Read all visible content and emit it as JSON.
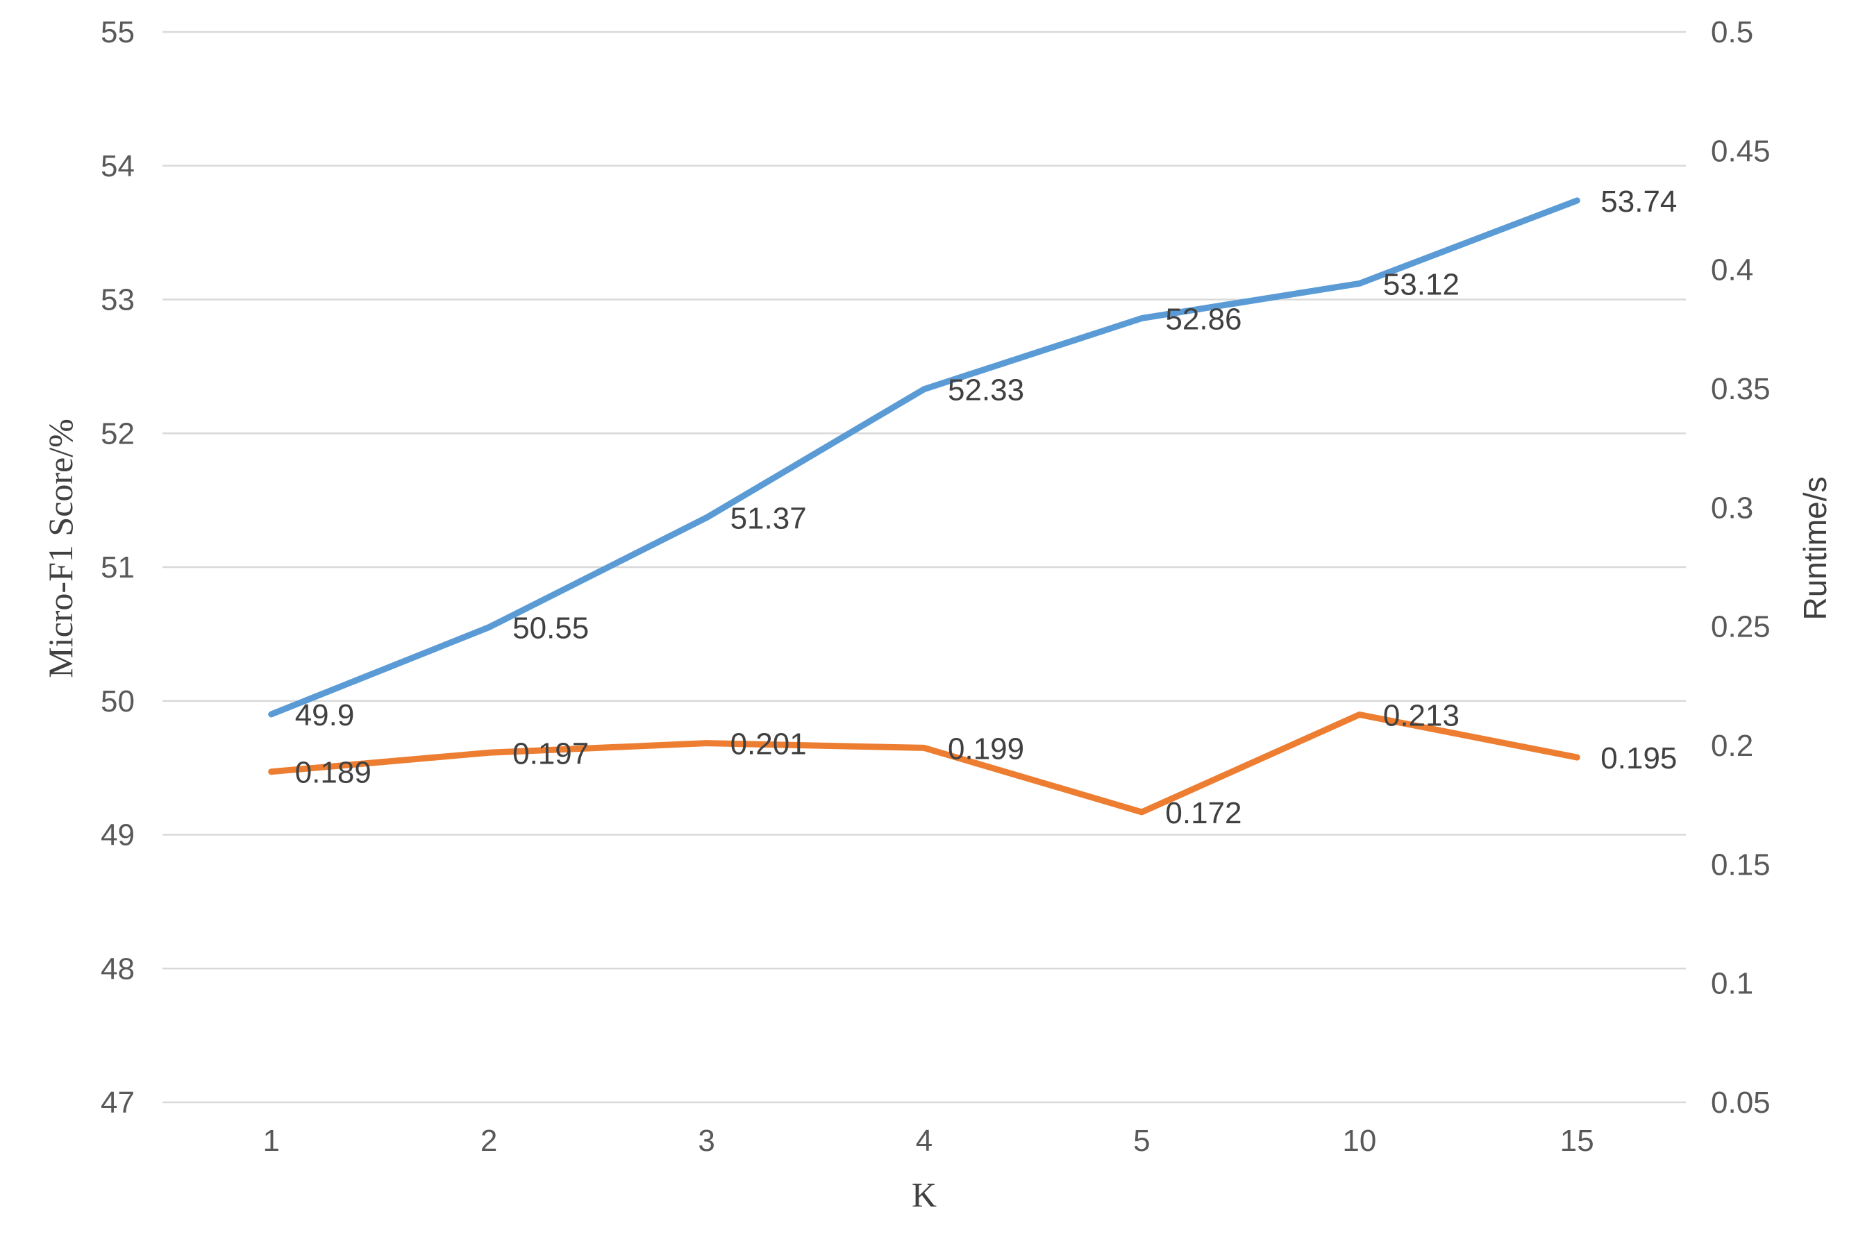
{
  "chart_data": {
    "type": "line",
    "title": "",
    "xlabel": "K",
    "ylabel": "Micro-F1 Score/%",
    "y2label": "Runtime/s",
    "categories": [
      "1",
      "2",
      "3",
      "4",
      "5",
      "10",
      "15"
    ],
    "ylim": [
      47,
      55
    ],
    "yticks": [
      "47",
      "48",
      "49",
      "50",
      "51",
      "52",
      "53",
      "54",
      "55"
    ],
    "y2lim": [
      0.05,
      0.5
    ],
    "y2ticks": [
      "0.05",
      "0.1",
      "0.15",
      "0.2",
      "0.25",
      "0.3",
      "0.35",
      "0.4",
      "0.45",
      "0.5"
    ],
    "grid": true,
    "legend": "none",
    "series": [
      {
        "axis": "left",
        "color": "#5B9BD5",
        "values": [
          49.9,
          50.55,
          51.37,
          52.33,
          52.86,
          53.12,
          53.74
        ],
        "labels": [
          "49.9",
          "50.55",
          "51.37",
          "52.33",
          "52.86",
          "53.12",
          "53.74"
        ]
      },
      {
        "axis": "right",
        "color": "#ED7D31",
        "values": [
          0.189,
          0.197,
          0.201,
          0.199,
          0.172,
          0.213,
          0.195
        ],
        "labels": [
          "0.189",
          "0.197",
          "0.201",
          "0.199",
          "0.172",
          "0.213",
          "0.195"
        ]
      }
    ]
  }
}
